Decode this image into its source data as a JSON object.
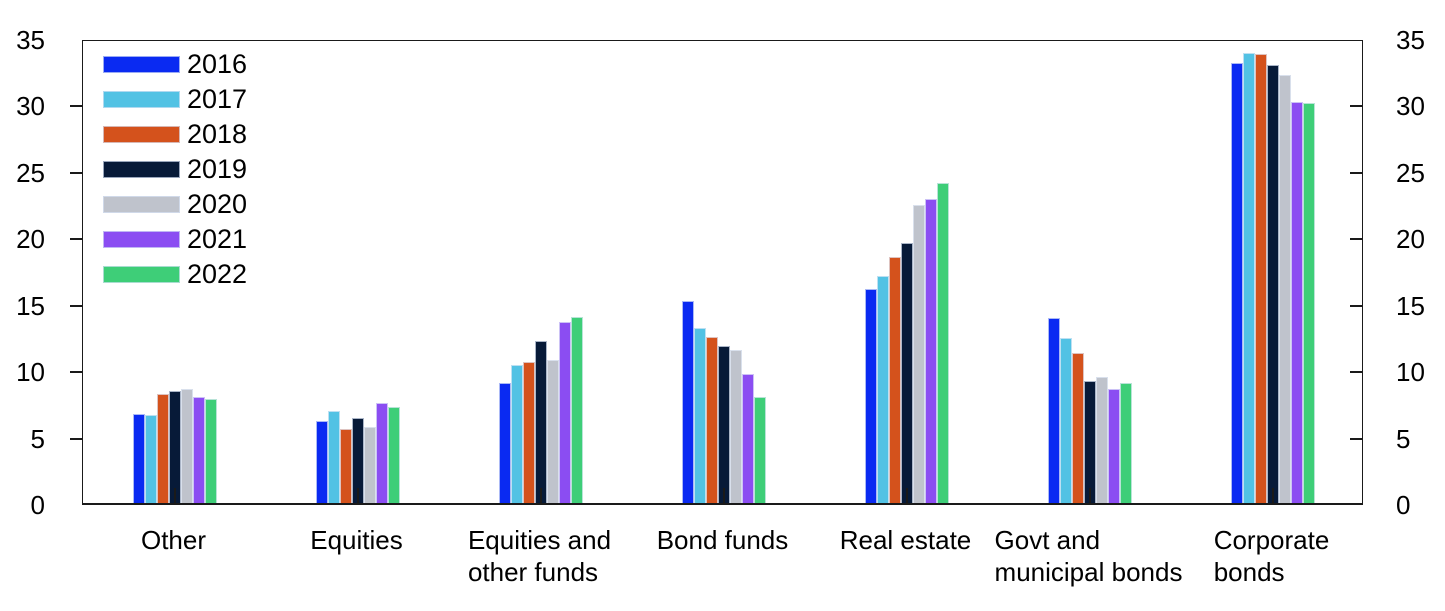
{
  "chart_data": {
    "type": "bar",
    "categories": [
      "Other",
      "Equities",
      "Equities and\nother funds",
      "Bond funds",
      "Real estate",
      "Govt and\nmunicipal bonds",
      "Corporate\nbonds"
    ],
    "series": [
      {
        "name": "2016",
        "color": "#0A2AF2",
        "values": [
          6.7,
          6.2,
          9.0,
          15.2,
          16.1,
          13.9,
          33.1
        ]
      },
      {
        "name": "2017",
        "color": "#52C2E4",
        "values": [
          6.6,
          6.9,
          10.4,
          13.2,
          17.1,
          12.4,
          33.9
        ]
      },
      {
        "name": "2018",
        "color": "#D4521C",
        "values": [
          8.2,
          5.6,
          10.6,
          12.5,
          18.5,
          11.3,
          33.8
        ]
      },
      {
        "name": "2019",
        "color": "#071A38",
        "values": [
          8.4,
          6.4,
          12.2,
          11.8,
          19.6,
          9.2,
          33.0
        ]
      },
      {
        "name": "2020",
        "color": "#BFC3CC",
        "values": [
          8.6,
          5.7,
          10.8,
          11.5,
          22.4,
          9.5,
          32.2
        ]
      },
      {
        "name": "2021",
        "color": "#8B4DF2",
        "values": [
          8.0,
          7.5,
          13.6,
          9.7,
          22.9,
          8.6,
          30.2
        ]
      },
      {
        "name": "2022",
        "color": "#3ECE78",
        "values": [
          7.8,
          7.2,
          14.0,
          8.0,
          24.1,
          9.0,
          30.1
        ]
      }
    ],
    "ylim": [
      0,
      35
    ],
    "yticks": [
      0,
      5,
      10,
      15,
      20,
      25,
      30,
      35
    ],
    "ylabel_left": true,
    "ylabel_right": true,
    "grid": false,
    "legend_position": "top-left",
    "plot_background": "#ffffff",
    "axis_color": "#1a1a1a"
  }
}
